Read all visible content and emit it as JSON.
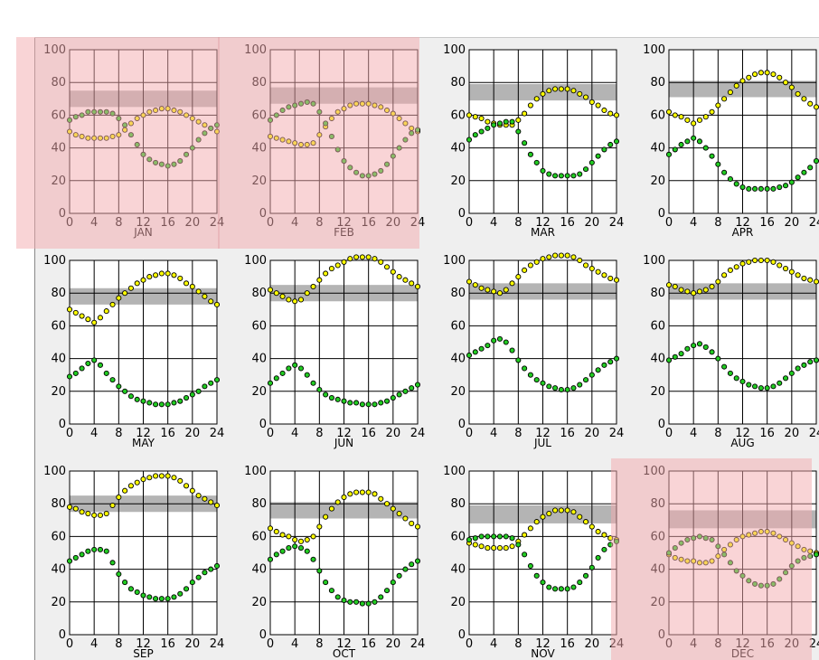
{
  "x_ticks": [
    "0",
    "4",
    "8",
    "12",
    "16",
    "20",
    "24"
  ],
  "y_ticks": [
    "0",
    "20",
    "40",
    "60",
    "80",
    "100"
  ],
  "colors": {
    "panel_background": "#efefef",
    "highlight": "#f4a9ad",
    "comfort_band": "#b4b4b4",
    "temperature_dot": "#ffff00",
    "humidity_dot": "#22cc22",
    "dot_outline": "#000000"
  },
  "chart_data": [
    {
      "type": "scatter",
      "month": "JAN",
      "highlighted": true,
      "xlim": [
        0,
        24
      ],
      "ylim": [
        0,
        100
      ],
      "grid": true,
      "band": [
        65,
        75
      ],
      "series": [
        {
          "color": "#ffff00",
          "values": [
            50,
            48,
            47,
            46,
            46,
            46,
            46,
            47,
            48,
            51,
            55,
            58,
            60,
            62,
            63,
            64,
            64,
            63,
            62,
            60,
            58,
            56,
            54,
            52,
            50
          ]
        },
        {
          "color": "#22cc22",
          "values": [
            57,
            59,
            60,
            62,
            62,
            62,
            62,
            61,
            58,
            54,
            48,
            42,
            36,
            33,
            31,
            30,
            29,
            30,
            32,
            36,
            40,
            45,
            49,
            52,
            54
          ]
        }
      ]
    },
    {
      "type": "scatter",
      "month": "FEB",
      "highlighted": true,
      "xlim": [
        0,
        24
      ],
      "ylim": [
        0,
        100
      ],
      "grid": true,
      "band": [
        67,
        77
      ],
      "series": [
        {
          "color": "#ffff00",
          "values": [
            47,
            46,
            45,
            44,
            43,
            42,
            42,
            43,
            48,
            53,
            58,
            62,
            64,
            66,
            67,
            67,
            67,
            66,
            65,
            63,
            61,
            58,
            55,
            52,
            50
          ]
        },
        {
          "color": "#22cc22",
          "values": [
            57,
            60,
            63,
            65,
            66,
            67,
            68,
            67,
            62,
            55,
            47,
            39,
            32,
            28,
            25,
            23,
            23,
            24,
            26,
            30,
            35,
            40,
            45,
            49,
            51
          ]
        }
      ]
    },
    {
      "type": "scatter",
      "month": "MAR",
      "highlighted": false,
      "xlim": [
        0,
        24
      ],
      "ylim": [
        0,
        100
      ],
      "grid": true,
      "band": [
        69,
        79
      ],
      "series": [
        {
          "color": "#ffff00",
          "values": [
            60,
            59,
            58,
            56,
            55,
            54,
            54,
            54,
            57,
            61,
            66,
            70,
            73,
            75,
            76,
            76,
            76,
            75,
            73,
            71,
            68,
            66,
            63,
            61,
            60
          ]
        },
        {
          "color": "#22cc22",
          "values": [
            45,
            48,
            50,
            52,
            54,
            55,
            56,
            56,
            50,
            43,
            36,
            31,
            26,
            24,
            23,
            23,
            23,
            23,
            24,
            27,
            31,
            35,
            39,
            42,
            44
          ]
        }
      ]
    },
    {
      "type": "scatter",
      "month": "APR",
      "highlighted": false,
      "xlim": [
        0,
        24
      ],
      "ylim": [
        0,
        100
      ],
      "grid": true,
      "band": [
        71,
        81
      ],
      "series": [
        {
          "color": "#ffff00",
          "values": [
            62,
            60,
            59,
            57,
            55,
            57,
            59,
            62,
            66,
            70,
            74,
            78,
            81,
            83,
            85,
            86,
            86,
            85,
            83,
            80,
            77,
            73,
            70,
            67,
            65
          ]
        },
        {
          "color": "#22cc22",
          "values": [
            36,
            39,
            42,
            44,
            46,
            44,
            40,
            35,
            30,
            25,
            21,
            18,
            16,
            15,
            15,
            15,
            15,
            15,
            16,
            17,
            19,
            22,
            25,
            28,
            32
          ]
        }
      ]
    },
    {
      "type": "scatter",
      "month": "MAY",
      "highlighted": false,
      "xlim": [
        0,
        24
      ],
      "ylim": [
        0,
        100
      ],
      "grid": true,
      "band": [
        73,
        83
      ],
      "series": [
        {
          "color": "#ffff00",
          "values": [
            70,
            68,
            66,
            64,
            62,
            65,
            69,
            73,
            77,
            80,
            83,
            86,
            88,
            90,
            91,
            92,
            92,
            91,
            89,
            86,
            84,
            81,
            78,
            75,
            73
          ]
        },
        {
          "color": "#22cc22",
          "values": [
            29,
            31,
            34,
            37,
            39,
            36,
            31,
            27,
            23,
            20,
            17,
            15,
            14,
            13,
            12,
            12,
            12,
            13,
            14,
            16,
            18,
            20,
            23,
            25,
            27
          ]
        }
      ]
    },
    {
      "type": "scatter",
      "month": "JUN",
      "highlighted": false,
      "xlim": [
        0,
        24
      ],
      "ylim": [
        0,
        100
      ],
      "grid": true,
      "band": [
        75,
        85
      ],
      "series": [
        {
          "color": "#ffff00",
          "values": [
            82,
            80,
            78,
            76,
            75,
            76,
            80,
            84,
            88,
            92,
            95,
            97,
            99,
            101,
            102,
            102,
            102,
            101,
            99,
            96,
            93,
            90,
            88,
            86,
            84
          ]
        },
        {
          "color": "#22cc22",
          "values": [
            25,
            28,
            31,
            34,
            36,
            34,
            30,
            25,
            21,
            18,
            16,
            15,
            14,
            13,
            13,
            12,
            12,
            12,
            13,
            14,
            16,
            18,
            20,
            22,
            24
          ]
        }
      ]
    },
    {
      "type": "scatter",
      "month": "JUL",
      "highlighted": false,
      "xlim": [
        0,
        24
      ],
      "ylim": [
        0,
        100
      ],
      "grid": true,
      "band": [
        76,
        86
      ],
      "series": [
        {
          "color": "#ffff00",
          "values": [
            87,
            85,
            83,
            82,
            81,
            80,
            82,
            86,
            90,
            94,
            97,
            99,
            101,
            102,
            103,
            103,
            103,
            102,
            100,
            97,
            95,
            93,
            91,
            89,
            88
          ]
        },
        {
          "color": "#22cc22",
          "values": [
            42,
            44,
            46,
            48,
            51,
            52,
            50,
            45,
            39,
            34,
            30,
            27,
            25,
            23,
            22,
            21,
            21,
            22,
            24,
            27,
            30,
            33,
            36,
            38,
            40
          ]
        }
      ]
    },
    {
      "type": "scatter",
      "month": "AUG",
      "highlighted": false,
      "xlim": [
        0,
        24
      ],
      "ylim": [
        0,
        100
      ],
      "grid": true,
      "band": [
        76,
        86
      ],
      "series": [
        {
          "color": "#ffff00",
          "values": [
            85,
            84,
            82,
            81,
            80,
            81,
            82,
            84,
            87,
            91,
            94,
            96,
            98,
            99,
            100,
            100,
            100,
            99,
            97,
            95,
            93,
            91,
            89,
            88,
            87
          ]
        },
        {
          "color": "#22cc22",
          "values": [
            39,
            41,
            43,
            46,
            48,
            49,
            47,
            44,
            40,
            35,
            31,
            28,
            26,
            24,
            23,
            22,
            22,
            23,
            25,
            28,
            31,
            34,
            36,
            38,
            39
          ]
        }
      ]
    },
    {
      "type": "scatter",
      "month": "SEP",
      "highlighted": false,
      "xlim": [
        0,
        24
      ],
      "ylim": [
        0,
        100
      ],
      "grid": true,
      "band": [
        75,
        85
      ],
      "series": [
        {
          "color": "#ffff00",
          "values": [
            78,
            77,
            75,
            74,
            73,
            73,
            74,
            79,
            84,
            88,
            91,
            93,
            95,
            96,
            97,
            97,
            97,
            96,
            94,
            91,
            88,
            85,
            83,
            81,
            79
          ]
        },
        {
          "color": "#22cc22",
          "values": [
            45,
            47,
            49,
            51,
            52,
            52,
            51,
            44,
            37,
            32,
            28,
            26,
            24,
            23,
            22,
            22,
            22,
            23,
            25,
            28,
            32,
            35,
            38,
            40,
            42
          ]
        }
      ]
    },
    {
      "type": "scatter",
      "month": "OCT",
      "highlighted": false,
      "xlim": [
        0,
        24
      ],
      "ylim": [
        0,
        100
      ],
      "grid": true,
      "band": [
        71,
        81
      ],
      "series": [
        {
          "color": "#ffff00",
          "values": [
            65,
            63,
            61,
            60,
            58,
            57,
            58,
            60,
            66,
            72,
            77,
            81,
            84,
            86,
            87,
            87,
            87,
            86,
            83,
            80,
            77,
            74,
            71,
            68,
            66
          ]
        },
        {
          "color": "#22cc22",
          "values": [
            46,
            49,
            51,
            53,
            54,
            53,
            51,
            46,
            39,
            32,
            27,
            23,
            21,
            20,
            20,
            19,
            19,
            20,
            23,
            27,
            32,
            36,
            40,
            43,
            45
          ]
        }
      ]
    },
    {
      "type": "scatter",
      "month": "NOV",
      "highlighted": false,
      "xlim": [
        0,
        24
      ],
      "ylim": [
        0,
        100
      ],
      "grid": true,
      "band": [
        68,
        79
      ],
      "series": [
        {
          "color": "#ffff00",
          "values": [
            56,
            55,
            54,
            53,
            53,
            53,
            53,
            54,
            57,
            61,
            65,
            69,
            72,
            74,
            76,
            76,
            76,
            75,
            72,
            69,
            66,
            63,
            61,
            59,
            58
          ]
        },
        {
          "color": "#22cc22",
          "values": [
            58,
            59,
            60,
            60,
            60,
            60,
            60,
            59,
            55,
            49,
            42,
            36,
            32,
            29,
            28,
            28,
            28,
            29,
            32,
            36,
            41,
            47,
            52,
            55,
            57
          ]
        }
      ]
    },
    {
      "type": "scatter",
      "month": "DEC",
      "highlighted": true,
      "xlim": [
        0,
        24
      ],
      "ylim": [
        0,
        100
      ],
      "grid": true,
      "band": [
        65,
        76
      ],
      "series": [
        {
          "color": "#ffff00",
          "values": [
            49,
            47,
            46,
            45,
            45,
            44,
            44,
            45,
            48,
            52,
            55,
            58,
            60,
            61,
            62,
            63,
            63,
            62,
            60,
            58,
            56,
            54,
            52,
            51,
            50
          ]
        },
        {
          "color": "#22cc22",
          "values": [
            50,
            53,
            56,
            58,
            59,
            60,
            59,
            58,
            54,
            49,
            44,
            39,
            36,
            33,
            31,
            30,
            30,
            31,
            34,
            38,
            42,
            45,
            47,
            48,
            49
          ]
        }
      ]
    }
  ]
}
